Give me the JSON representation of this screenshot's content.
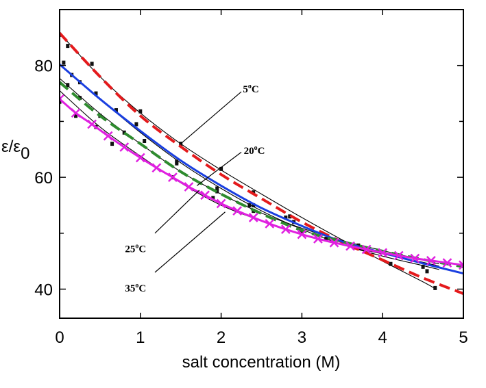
{
  "chart_data": {
    "type": "line",
    "title": "",
    "xlabel": "salt concentration (M)",
    "ylabel": "ε/ε",
    "ylabel_subscript": "0",
    "xlim": [
      0,
      5
    ],
    "ylim": [
      34.8,
      90
    ],
    "xticks": [
      0,
      1,
      2,
      3,
      4,
      5
    ],
    "yticks": [
      40,
      60,
      80
    ],
    "grid": false,
    "legend": "none",
    "series": [
      {
        "color": "#e41a1c",
        "style": "dashed",
        "x": [
          0,
          0.5,
          1,
          1.5,
          2,
          2.5,
          3,
          3.5,
          4,
          4.5,
          5
        ],
        "y": [
          85.8,
          78.0,
          71.0,
          65.5,
          60.5,
          56.2,
          52.0,
          48.4,
          45.2,
          42.0,
          39.2
        ]
      },
      {
        "color": "#1a3fe0",
        "style": "solid",
        "x": [
          0,
          0.5,
          1,
          1.5,
          2,
          2.5,
          3,
          3.5,
          4,
          4.5,
          5
        ],
        "y": [
          80.2,
          74.0,
          68.3,
          63.0,
          58.5,
          54.5,
          51.3,
          48.5,
          46.5,
          44.6,
          42.8
        ]
      },
      {
        "color": "#2e8b2e",
        "style": "dashed",
        "x": [
          0,
          0.5,
          1,
          1.5,
          2,
          2.5,
          3,
          3.5,
          4,
          4.5,
          5
        ],
        "y": [
          77.0,
          71.0,
          66.0,
          61.0,
          57.0,
          53.5,
          50.5,
          48.5,
          46.8,
          45.3,
          44.0
        ]
      },
      {
        "color": "#e020e0",
        "style": "solid-x",
        "x": [
          0,
          0.2,
          0.4,
          0.6,
          0.8,
          1.0,
          1.2,
          1.4,
          1.6,
          1.8,
          2.0,
          2.2,
          2.4,
          2.6,
          2.8,
          3.0,
          3.2,
          3.4,
          3.6,
          3.8,
          4.0,
          4.2,
          4.4,
          4.6,
          4.8,
          5.0
        ],
        "y": [
          74.0,
          71.5,
          69.5,
          67.4,
          65.4,
          63.5,
          61.7,
          60.0,
          58.3,
          56.8,
          55.3,
          54.0,
          52.8,
          51.7,
          50.7,
          49.8,
          49.0,
          48.3,
          47.7,
          47.1,
          46.5,
          46.0,
          45.5,
          45.1,
          44.7,
          44.3
        ]
      },
      {
        "color": "#000000",
        "style": "thin",
        "x": [
          0,
          0.5,
          1,
          1.5,
          2,
          2.5,
          3,
          3.5,
          4,
          4.5,
          4.65
        ],
        "y": [
          85.8,
          78.0,
          71.5,
          66.0,
          61.3,
          57.0,
          52.8,
          48.8,
          45.0,
          41.3,
          40.1
        ]
      },
      {
        "color": "#000000",
        "style": "thin",
        "x": [
          0,
          0.5,
          1,
          1.5,
          2,
          2.5,
          3,
          3.5,
          4,
          4.5,
          4.7
        ],
        "y": [
          80.3,
          74.0,
          68.0,
          62.6,
          58.0,
          54.0,
          50.7,
          48.0,
          45.9,
          44.2,
          43.5
        ]
      },
      {
        "color": "#000000",
        "style": "thin",
        "x": [
          0,
          0.5,
          1,
          1.5,
          2,
          2.5,
          3,
          3.5,
          4,
          4.5,
          4.7
        ],
        "y": [
          77.7,
          71.4,
          66.0,
          61.0,
          57.0,
          53.6,
          50.9,
          48.7,
          46.9,
          45.2,
          44.5
        ]
      },
      {
        "color": "#000000",
        "style": "thin",
        "x": [
          0,
          0.5,
          1,
          1.5,
          2,
          2.5,
          3,
          3.5,
          4,
          4.5,
          4.7
        ],
        "y": [
          75.5,
          69.0,
          63.8,
          59.0,
          55.0,
          52.2,
          49.8,
          47.9,
          46.3,
          44.8,
          44.1
        ]
      }
    ],
    "markers": [
      {
        "x": 0.0,
        "y": 85.5
      },
      {
        "x": 0.1,
        "y": 83.5
      },
      {
        "x": 0.4,
        "y": 80.3
      },
      {
        "x": 1.0,
        "y": 71.8
      },
      {
        "x": 1.5,
        "y": 66.0
      },
      {
        "x": 2.0,
        "y": 61.5
      },
      {
        "x": 2.4,
        "y": 57.3
      },
      {
        "x": 2.85,
        "y": 53.0
      },
      {
        "x": 4.1,
        "y": 44.5
      },
      {
        "x": 4.65,
        "y": 40.2
      },
      {
        "x": 0.05,
        "y": 80.5
      },
      {
        "x": 0.15,
        "y": 78.3
      },
      {
        "x": 0.25,
        "y": 77.0
      },
      {
        "x": 0.45,
        "y": 75.0
      },
      {
        "x": 0.7,
        "y": 72.0
      },
      {
        "x": 0.95,
        "y": 69.5
      },
      {
        "x": 1.45,
        "y": 62.5
      },
      {
        "x": 1.95,
        "y": 58.0
      },
      {
        "x": 2.4,
        "y": 55.0
      },
      {
        "x": 2.9,
        "y": 52.0
      },
      {
        "x": 3.7,
        "y": 47.8
      },
      {
        "x": 4.55,
        "y": 43.2
      },
      {
        "x": 0.1,
        "y": 76.5
      },
      {
        "x": 0.25,
        "y": 74.2
      },
      {
        "x": 0.5,
        "y": 71.0
      },
      {
        "x": 0.8,
        "y": 68.0
      },
      {
        "x": 1.05,
        "y": 66.5
      },
      {
        "x": 1.45,
        "y": 62.8
      },
      {
        "x": 1.95,
        "y": 57.5
      },
      {
        "x": 2.35,
        "y": 55.0
      },
      {
        "x": 2.8,
        "y": 52.8
      },
      {
        "x": 3.3,
        "y": 49.0
      },
      {
        "x": 3.75,
        "y": 47.2
      },
      {
        "x": 4.5,
        "y": 44.0
      },
      {
        "x": 0.0,
        "y": 73.5
      },
      {
        "x": 0.2,
        "y": 71.0
      },
      {
        "x": 0.45,
        "y": 69.0
      },
      {
        "x": 0.65,
        "y": 66.0
      },
      {
        "x": 1.4,
        "y": 60.0
      },
      {
        "x": 1.9,
        "y": 56.3
      },
      {
        "x": 2.4,
        "y": 54.0
      },
      {
        "x": 3.0,
        "y": 50.0
      }
    ],
    "annotations": [
      {
        "label": "5",
        "label_sup": "o",
        "label_unit": "C",
        "text_at": [
          2.27,
          75.2
        ],
        "line_from": [
          2.25,
          75.3
        ],
        "line_to": [
          1.5,
          66.0
        ]
      },
      {
        "label": "20",
        "label_sup": "o",
        "label_unit": "C",
        "text_at": [
          2.28,
          64.2
        ],
        "line_from": [
          2.25,
          64.5
        ],
        "line_to": [
          1.7,
          58.5
        ]
      },
      {
        "label": "25",
        "label_sup": "o",
        "label_unit": "C",
        "text_at": [
          0.81,
          46.6
        ],
        "line_from": [
          1.18,
          50.0
        ],
        "line_to": [
          1.73,
          57.7
        ]
      },
      {
        "label": "35",
        "label_sup": "o",
        "label_unit": "C",
        "text_at": [
          0.81,
          39.6
        ],
        "line_from": [
          1.18,
          43.0
        ],
        "line_to": [
          2.05,
          53.8
        ]
      }
    ]
  }
}
